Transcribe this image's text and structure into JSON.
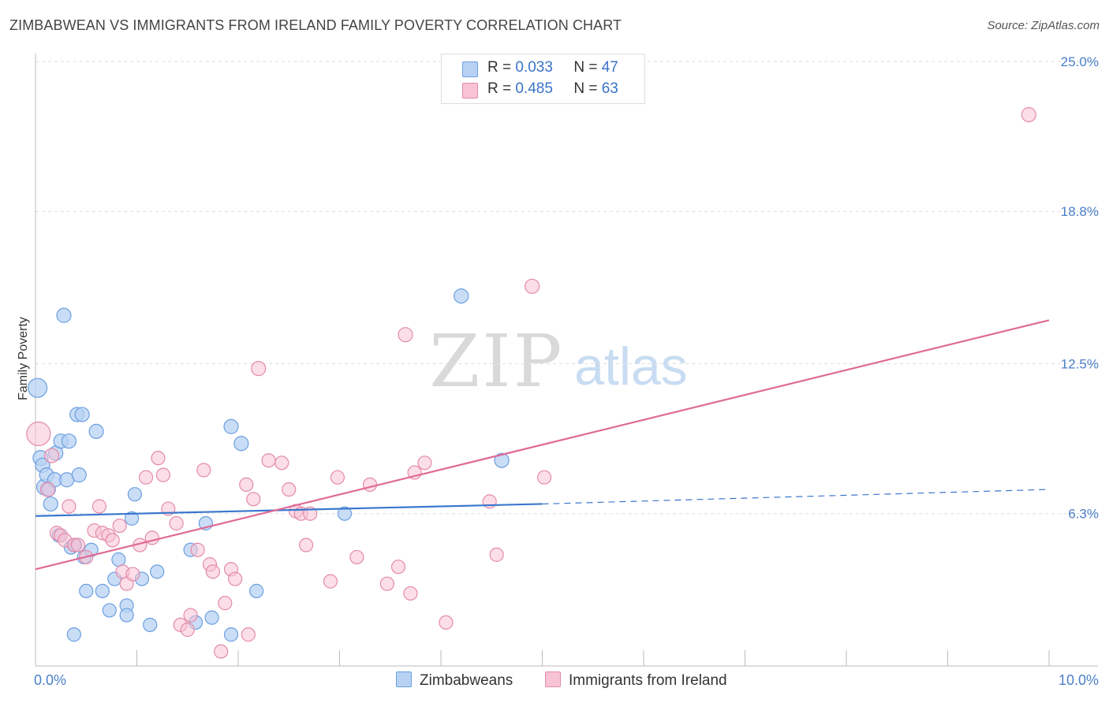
{
  "header": {
    "title": "ZIMBABWEAN VS IMMIGRANTS FROM IRELAND FAMILY POVERTY CORRELATION CHART",
    "source": "Source: ZipAtlas.com"
  },
  "watermark": {
    "zip": "ZIP",
    "atlas": "atlas"
  },
  "legend": {
    "r_label": "R =",
    "n_label": "N =",
    "series_a": {
      "r": "0.033",
      "n": "47"
    },
    "series_b": {
      "r": "0.485",
      "n": "63"
    }
  },
  "bottom_legend": {
    "a": "Zimbabweans",
    "b": "Immigrants from Ireland"
  },
  "chart_data": {
    "type": "scatter",
    "ylabel": "Family Poverty",
    "xlim": [
      0,
      10
    ],
    "ylim": [
      0,
      25
    ],
    "x_tick_labels": [
      "0.0%",
      "10.0%"
    ],
    "y_ticks": [
      6.3,
      12.5,
      18.8,
      25.0
    ],
    "y_tick_labels": [
      "6.3%",
      "12.5%",
      "18.8%",
      "25.0%"
    ],
    "grid": true,
    "colors": {
      "a_fill": "#b8d2f3",
      "a_stroke": "#6a9fe0",
      "a_line": "#3a77cc",
      "b_fill": "#f7c3d5",
      "b_stroke": "#e48aaa",
      "b_line": "#e06a96"
    },
    "series": [
      {
        "name": "Zimbabweans",
        "trend": {
          "x0": 0,
          "y0": 6.2,
          "x1": 5,
          "y1": 6.7,
          "x_dash_end": 10,
          "y_dash_end": 7.3
        },
        "points": [
          [
            0.02,
            11.5,
            20
          ],
          [
            0.05,
            8.6,
            15
          ],
          [
            0.07,
            8.3,
            14
          ],
          [
            0.09,
            7.4,
            16
          ],
          [
            0.11,
            7.9,
            14
          ],
          [
            0.13,
            7.3,
            13
          ],
          [
            0.15,
            6.7,
            14
          ],
          [
            0.19,
            7.7,
            14
          ],
          [
            0.2,
            8.8,
            14
          ],
          [
            0.23,
            5.4,
            13
          ],
          [
            0.25,
            9.3,
            14
          ],
          [
            0.28,
            14.5,
            14
          ],
          [
            0.31,
            7.7,
            14
          ],
          [
            0.33,
            9.3,
            14
          ],
          [
            0.35,
            4.9,
            13
          ],
          [
            0.38,
            1.3,
            13
          ],
          [
            0.39,
            5.0,
            13
          ],
          [
            0.41,
            10.4,
            14
          ],
          [
            0.43,
            7.9,
            14
          ],
          [
            0.46,
            10.4,
            14
          ],
          [
            0.48,
            4.5,
            13
          ],
          [
            0.5,
            3.1,
            13
          ],
          [
            0.55,
            4.8,
            13
          ],
          [
            0.6,
            9.7,
            14
          ],
          [
            0.66,
            3.1,
            13
          ],
          [
            0.73,
            2.3,
            13
          ],
          [
            0.78,
            3.6,
            13
          ],
          [
            0.82,
            4.4,
            13
          ],
          [
            0.9,
            2.5,
            13
          ],
          [
            0.9,
            2.1,
            13
          ],
          [
            0.95,
            6.1,
            13
          ],
          [
            0.98,
            7.1,
            13
          ],
          [
            1.05,
            3.6,
            13
          ],
          [
            1.13,
            1.7,
            13
          ],
          [
            1.2,
            3.9,
            13
          ],
          [
            1.53,
            4.8,
            13
          ],
          [
            1.58,
            1.8,
            13
          ],
          [
            1.68,
            5.9,
            13
          ],
          [
            1.74,
            2.0,
            13
          ],
          [
            1.93,
            9.9,
            14
          ],
          [
            1.93,
            1.3,
            13
          ],
          [
            2.03,
            9.2,
            14
          ],
          [
            2.18,
            3.1,
            13
          ],
          [
            3.05,
            6.3,
            13
          ],
          [
            4.2,
            15.3,
            14
          ],
          [
            4.6,
            8.5,
            14
          ]
        ]
      },
      {
        "name": "Immigrants from Ireland",
        "trend": {
          "x0": 0,
          "y0": 4.0,
          "x1": 10,
          "y1": 14.3
        },
        "points": [
          [
            0.03,
            9.6,
            26
          ],
          [
            0.12,
            7.3,
            14
          ],
          [
            0.16,
            8.7,
            14
          ],
          [
            0.21,
            5.5,
            13
          ],
          [
            0.25,
            5.4,
            13
          ],
          [
            0.29,
            5.2,
            13
          ],
          [
            0.33,
            6.6,
            13
          ],
          [
            0.38,
            5.0,
            13
          ],
          [
            0.42,
            5.0,
            13
          ],
          [
            0.5,
            4.5,
            13
          ],
          [
            0.58,
            5.6,
            13
          ],
          [
            0.63,
            6.6,
            13
          ],
          [
            0.66,
            5.5,
            13
          ],
          [
            0.72,
            5.4,
            13
          ],
          [
            0.76,
            5.2,
            13
          ],
          [
            0.83,
            5.8,
            13
          ],
          [
            0.86,
            3.9,
            13
          ],
          [
            0.9,
            3.4,
            13
          ],
          [
            0.96,
            3.8,
            13
          ],
          [
            1.03,
            5.0,
            13
          ],
          [
            1.09,
            7.8,
            13
          ],
          [
            1.15,
            5.3,
            13
          ],
          [
            1.21,
            8.6,
            13
          ],
          [
            1.26,
            7.9,
            13
          ],
          [
            1.31,
            6.5,
            13
          ],
          [
            1.39,
            5.9,
            13
          ],
          [
            1.43,
            1.7,
            13
          ],
          [
            1.5,
            1.5,
            13
          ],
          [
            1.53,
            2.1,
            13
          ],
          [
            1.6,
            4.8,
            13
          ],
          [
            1.66,
            8.1,
            13
          ],
          [
            1.72,
            4.2,
            13
          ],
          [
            1.75,
            3.9,
            13
          ],
          [
            1.83,
            0.6,
            13
          ],
          [
            1.87,
            2.6,
            13
          ],
          [
            1.93,
            4.0,
            13
          ],
          [
            1.97,
            3.6,
            13
          ],
          [
            2.08,
            7.5,
            13
          ],
          [
            2.1,
            1.3,
            13
          ],
          [
            2.15,
            6.9,
            13
          ],
          [
            2.2,
            12.3,
            14
          ],
          [
            2.3,
            8.5,
            13
          ],
          [
            2.43,
            8.4,
            13
          ],
          [
            2.5,
            7.3,
            13
          ],
          [
            2.57,
            6.4,
            13
          ],
          [
            2.62,
            6.3,
            13
          ],
          [
            2.67,
            5.0,
            13
          ],
          [
            2.71,
            6.3,
            13
          ],
          [
            2.91,
            3.5,
            13
          ],
          [
            2.98,
            7.8,
            13
          ],
          [
            3.17,
            4.5,
            13
          ],
          [
            3.3,
            7.5,
            13
          ],
          [
            3.47,
            3.4,
            13
          ],
          [
            3.58,
            4.1,
            13
          ],
          [
            3.65,
            13.7,
            14
          ],
          [
            3.7,
            3.0,
            13
          ],
          [
            3.74,
            8.0,
            13
          ],
          [
            3.84,
            8.4,
            13
          ],
          [
            4.05,
            1.8,
            13
          ],
          [
            4.48,
            6.8,
            13
          ],
          [
            4.55,
            4.6,
            13
          ],
          [
            4.9,
            15.7,
            14
          ],
          [
            5.02,
            7.8,
            13
          ],
          [
            9.8,
            22.8,
            14
          ]
        ]
      }
    ]
  }
}
